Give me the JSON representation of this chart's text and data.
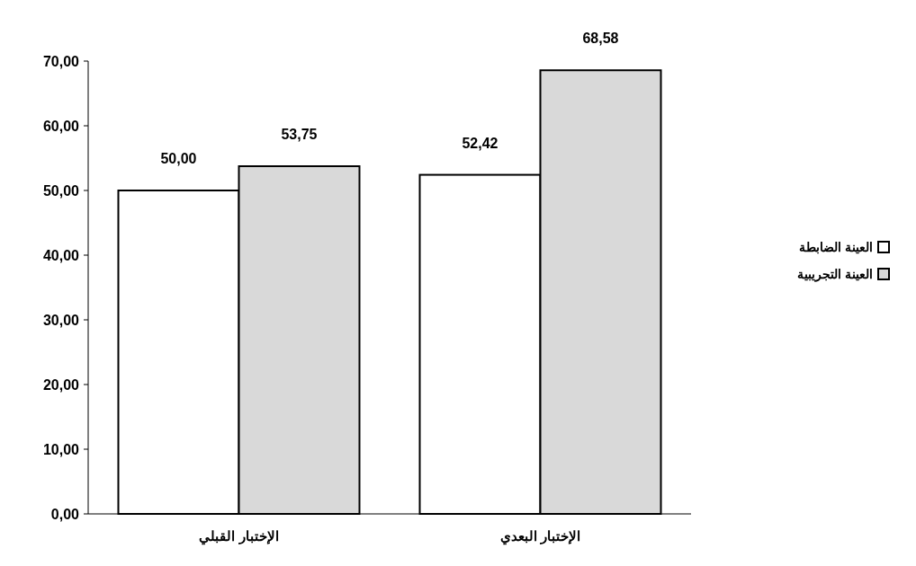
{
  "chart_data": {
    "type": "bar",
    "categories": [
      "الإختبار القبلي",
      "الإختبار البعدي"
    ],
    "series": [
      {
        "name": "العينة الضابطة",
        "color": "#ffffff",
        "values": [
          50,
          52.42
        ],
        "value_labels": [
          "50,00",
          "52,42"
        ]
      },
      {
        "name": "العينة التجريبية",
        "color": "#d9d9d9",
        "values": [
          53.75,
          68.58
        ],
        "value_labels": [
          "53,75",
          "68,58"
        ]
      }
    ],
    "ylim": [
      0,
      70
    ],
    "yticks": [
      {
        "value": 0,
        "label": "0,00"
      },
      {
        "value": 10,
        "label": "10,00"
      },
      {
        "value": 20,
        "label": "20,00"
      },
      {
        "value": 30,
        "label": "30,00"
      },
      {
        "value": 40,
        "label": "40,00"
      },
      {
        "value": 50,
        "label": "50,00"
      },
      {
        "value": 60,
        "label": "60,00"
      },
      {
        "value": 70,
        "label": "70,00"
      }
    ],
    "grid": false,
    "legend": "right"
  }
}
